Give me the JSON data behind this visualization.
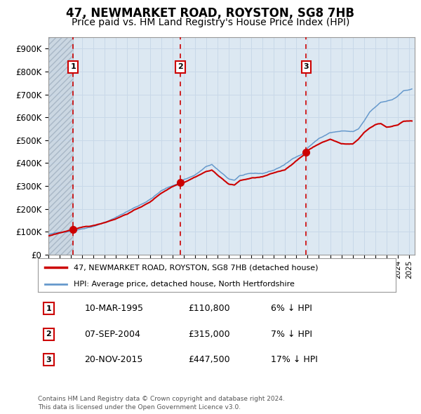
{
  "title": "47, NEWMARKET ROAD, ROYSTON, SG8 7HB",
  "subtitle": "Price paid vs. HM Land Registry's House Price Index (HPI)",
  "legend_line1": "47, NEWMARKET ROAD, ROYSTON, SG8 7HB (detached house)",
  "legend_line2": "HPI: Average price, detached house, North Hertfordshire",
  "footnote": "Contains HM Land Registry data © Crown copyright and database right 2024.\nThis data is licensed under the Open Government Licence v3.0.",
  "transactions": [
    {
      "num": 1,
      "date": "10-MAR-1995",
      "price": 110800,
      "pct": "6% ↓ HPI",
      "year": 1995.19
    },
    {
      "num": 2,
      "date": "07-SEP-2004",
      "price": 315000,
      "pct": "7% ↓ HPI",
      "year": 2004.68
    },
    {
      "num": 3,
      "date": "20-NOV-2015",
      "price": 447500,
      "pct": "17% ↓ HPI",
      "year": 2015.88
    }
  ],
  "grid_color": "#c8d8e8",
  "plot_bg": "#dce8f2",
  "red_line_color": "#cc0000",
  "blue_line_color": "#6699cc",
  "dashed_line_color": "#cc0000",
  "marker_color": "#cc0000",
  "transaction_box_color": "#cc0000",
  "ylim": [
    0,
    950000
  ],
  "yticks": [
    0,
    100000,
    200000,
    300000,
    400000,
    500000,
    600000,
    700000,
    800000,
    900000
  ],
  "xlim_start": 1993.0,
  "xlim_end": 2025.5,
  "title_fontsize": 12,
  "subtitle_fontsize": 10
}
